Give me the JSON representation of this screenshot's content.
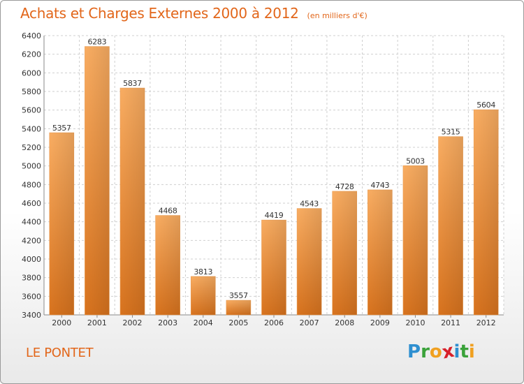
{
  "title": "Achats et Charges Externes 2000 à 2012",
  "subtitle": "(en milliers d'€)",
  "commune": "LE PONTET",
  "logo": {
    "letters": [
      "P",
      "r",
      "o",
      "x",
      "i",
      "t",
      "i"
    ],
    "colors": [
      "#2e8fd0",
      "#3aa23a",
      "#f0a020",
      "#d8202a",
      "#2e8fd0",
      "#3aa23a",
      "#f0a020"
    ]
  },
  "colors": {
    "accent": "#e2661a",
    "bar_top": "#f9ad62",
    "bar_bottom": "#d8731e"
  },
  "chart_data": {
    "type": "bar",
    "categories": [
      "2000",
      "2001",
      "2002",
      "2003",
      "2004",
      "2005",
      "2006",
      "2007",
      "2008",
      "2009",
      "2010",
      "2011",
      "2012"
    ],
    "values": [
      5357,
      6283,
      5837,
      4468,
      3813,
      3557,
      4419,
      4543,
      4728,
      4743,
      5003,
      5315,
      5604
    ],
    "title": "Achats et Charges Externes 2000 à 2012",
    "xlabel": "",
    "ylabel": "",
    "ylim": [
      3400,
      6400
    ],
    "yticks": [
      3400,
      3600,
      3800,
      4000,
      4200,
      4400,
      4600,
      4800,
      5000,
      5200,
      5400,
      5600,
      5800,
      6000,
      6200,
      6400
    ],
    "grid": true
  }
}
